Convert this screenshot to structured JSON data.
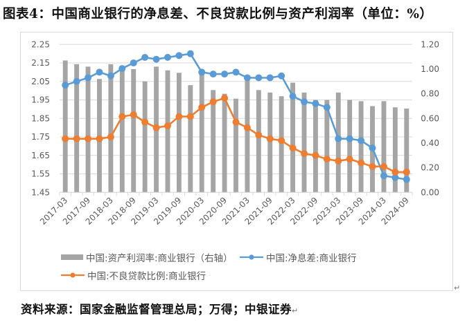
{
  "title": "图表4：中国商业银行的净息差、不良贷款比例与资产利润率（单位：%）",
  "source": "资料来源：国家金融监督管理总局；万得；中银证券",
  "chart_data": {
    "type": "bar+line",
    "title": "中国商业银行的净息差、不良贷款比例与资产利润率（单位：%）",
    "xlabel": "",
    "ylabel_left": "",
    "ylabel_right": "",
    "grid": true,
    "legend_position": "bottom",
    "ylim_left": [
      1.45,
      2.25
    ],
    "yticks_left": [
      "2.25",
      "2.15",
      "2.05",
      "1.95",
      "1.85",
      "1.75",
      "1.65",
      "1.55",
      "1.45"
    ],
    "ylim_right": [
      0.0,
      1.2
    ],
    "yticks_right": [
      "1.20",
      "1.00",
      "0.80",
      "0.60",
      "0.40",
      "0.20",
      "0.00"
    ],
    "x_tick_labels": [
      "2017-03",
      "2017-09",
      "2018-03",
      "2018-09",
      "2019-03",
      "2019-09",
      "2020-03",
      "2020-09",
      "2021-03",
      "2021-09",
      "2022-03",
      "2022-09",
      "2023-03",
      "2023-09",
      "2024-03",
      "2024-09"
    ],
    "categories": [
      "2017-03",
      "2017-06",
      "2017-09",
      "2017-12",
      "2018-03",
      "2018-06",
      "2018-09",
      "2018-12",
      "2019-03",
      "2019-06",
      "2019-09",
      "2019-12",
      "2020-03",
      "2020-06",
      "2020-09",
      "2020-12",
      "2021-03",
      "2021-06",
      "2021-09",
      "2021-12",
      "2022-03",
      "2022-06",
      "2022-09",
      "2022-12",
      "2023-03",
      "2023-06",
      "2023-09",
      "2023-12",
      "2024-03",
      "2024-06",
      "2024-09"
    ],
    "series": [
      {
        "name": "中国:资产利润率:商业银行（右轴）",
        "type": "bar",
        "axis": "right",
        "color": "#a5a5a5",
        "values": [
          1.07,
          1.04,
          1.02,
          0.92,
          1.04,
          1.0,
          1.0,
          0.9,
          1.02,
          0.99,
          0.97,
          0.87,
          0.98,
          0.83,
          0.8,
          0.76,
          0.93,
          0.83,
          0.81,
          0.78,
          0.89,
          0.81,
          0.75,
          0.75,
          0.81,
          0.75,
          0.74,
          0.7,
          0.74,
          0.69,
          0.68
        ]
      },
      {
        "name": "中国:净息差:商业银行",
        "type": "line",
        "axis": "left",
        "color": "#5b9bd5",
        "values": [
          2.03,
          2.05,
          2.07,
          2.1,
          2.08,
          2.12,
          2.15,
          2.18,
          2.17,
          2.18,
          2.19,
          2.2,
          2.1,
          2.09,
          2.09,
          2.1,
          2.07,
          2.07,
          2.07,
          2.08,
          1.97,
          1.94,
          1.93,
          1.91,
          1.74,
          1.74,
          1.73,
          1.69,
          1.54,
          1.53,
          1.52
        ]
      },
      {
        "name": "中国:不良贷款比例:商业银行",
        "type": "line",
        "axis": "left",
        "color": "#ed7d31",
        "values": [
          1.74,
          1.74,
          1.74,
          1.74,
          1.75,
          1.86,
          1.87,
          1.83,
          1.8,
          1.81,
          1.86,
          1.86,
          1.91,
          1.94,
          1.96,
          1.83,
          1.8,
          1.76,
          1.74,
          1.73,
          1.69,
          1.66,
          1.65,
          1.63,
          1.62,
          1.63,
          1.61,
          1.59,
          1.59,
          1.56,
          1.56
        ]
      }
    ]
  },
  "legend": [
    {
      "label": "中国:资产利润率:商业银行（右轴）",
      "marker": "bar",
      "color": "#a5a5a5"
    },
    {
      "label": "中国:净息差:商业银行",
      "marker": "line-dot",
      "color": "#5b9bd5"
    },
    {
      "label": "中国:不良贷款比例:商业银行",
      "marker": "line-dot",
      "color": "#ed7d31"
    }
  ]
}
